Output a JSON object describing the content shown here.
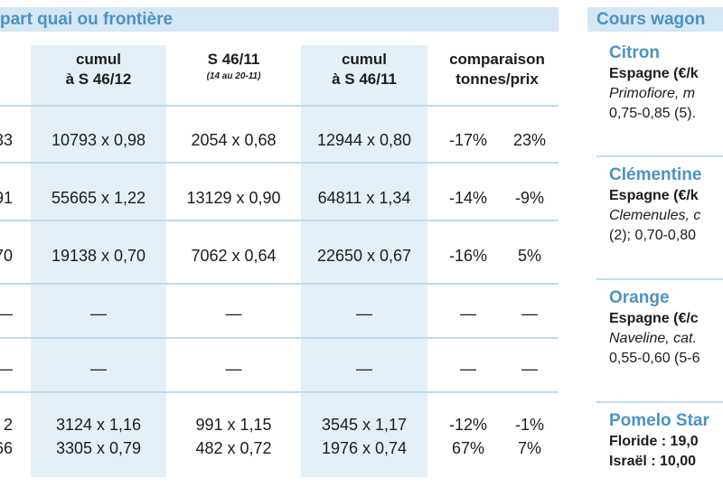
{
  "left": {
    "header": "part quai ou frontière",
    "columns": [
      {
        "line1": ")",
        "line2": ""
      },
      {
        "line1": "cumul",
        "line2": "à S 46/12"
      },
      {
        "line1": "S 46/11",
        "line2": "(14 au 20-11)"
      },
      {
        "line1": "cumul",
        "line2": "à S 46/11"
      },
      {
        "line1": "comparaison",
        "line2": "tonnes/prix"
      }
    ],
    "rows": [
      {
        "c0": "33",
        "c1": "10793 x 0,98",
        "c2": "2054 x 0,68",
        "c3": "12944 x 0,80",
        "c4": "-17%",
        "c5": "23%"
      },
      {
        "c0": "91",
        "c1": "55665 x 1,22",
        "c2": "13129 x 0,90",
        "c3": "64811 x 1,34",
        "c4": "-14%",
        "c5": "-9%"
      },
      {
        "c0": "70",
        "c1": "19138 x 0,70",
        "c2": "7062 x 0,64",
        "c3": "22650 x 0,67",
        "c4": "-16%",
        "c5": "5%"
      },
      {
        "c0": "—",
        "c1": "—",
        "c2": "—",
        "c3": "—",
        "c4": "—",
        "c5": "—"
      },
      {
        "c0": "—",
        "c1": "—",
        "c2": "—",
        "c3": "—",
        "c4": "—",
        "c5": "—"
      },
      {
        "c0": "2",
        "c1": "3124 x 1,16",
        "c2": "991 x 1,15",
        "c3": "3545 x 1,17",
        "c4": "-12%",
        "c5": "-1%"
      },
      {
        "c0": "66",
        "c1": "3305 x 0,79",
        "c2": "482 x 0,72",
        "c3": "1976 x 0,74",
        "c4": "67%",
        "c5": "7%"
      }
    ]
  },
  "right": {
    "header": "Cours wagon",
    "blocks": [
      {
        "title": "Citron",
        "l1": "Espagne (€/k",
        "l2": "Primofiore, m",
        "l3": "0,75-0,85 (5)."
      },
      {
        "title": "Clémentine",
        "l1": "Espagne (€/k",
        "l2": "Clemenules, c",
        "l3": "(2); 0,70-0,80"
      },
      {
        "title": "Orange",
        "l1": "Espagne (€/c",
        "l2": "Naveline, cat.",
        "l3": "0,55-0,60 (5-6"
      },
      {
        "title": "Pomelo Star",
        "l1": "Floride : 19,0",
        "l2": "Israël : 10,00"
      }
    ]
  },
  "colors": {
    "header_bg": "#d4e7f3",
    "header_text": "#4a93c4",
    "shade": "#e3f0f8",
    "rule": "#bfdced"
  }
}
